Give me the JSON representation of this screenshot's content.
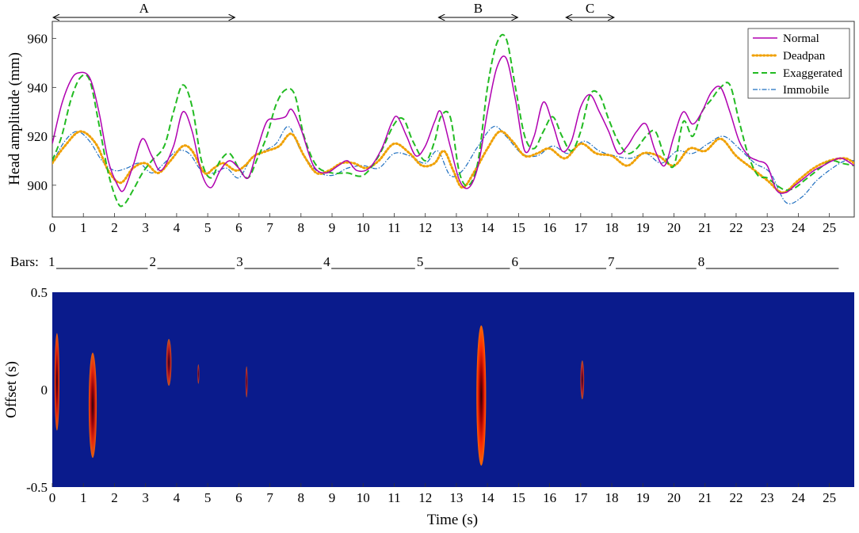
{
  "chart_data": [
    {
      "type": "line",
      "xlabel": "",
      "ylabel": "Head amplitude (mm)",
      "xlim": [
        0,
        25.8
      ],
      "ylim": [
        887,
        967
      ],
      "xticks": [
        "0",
        "1",
        "2",
        "3",
        "4",
        "5",
        "6",
        "7",
        "8",
        "9",
        "10",
        "11",
        "12",
        "13",
        "14",
        "15",
        "16",
        "17",
        "18",
        "19",
        "20",
        "21",
        "22",
        "23",
        "24",
        "25"
      ],
      "yticks": [
        "900",
        "920",
        "940",
        "960"
      ],
      "ytick_values": [
        900,
        920,
        940,
        960
      ],
      "grid": false,
      "legend_position": "top-right",
      "colors": {
        "Normal": "#b000b0",
        "Deadpan": "#f0a000",
        "Exaggerated": "#22bb22",
        "Immobile": "#1f6fc0"
      },
      "annotations": [
        {
          "label": "A",
          "x_start": 0,
          "x_end": 5.9
        },
        {
          "label": "B",
          "x_start": 12.4,
          "x_end": 15.0
        },
        {
          "label": "C",
          "x_start": 16.5,
          "x_end": 18.1
        }
      ],
      "series": [
        {
          "name": "Normal",
          "x": [
            0,
            0.3,
            0.6,
            0.85,
            1.2,
            1.5,
            1.8,
            2.1,
            2.3,
            2.6,
            2.9,
            3.2,
            3.5,
            3.9,
            4.2,
            4.5,
            4.8,
            5.1,
            5.4,
            5.7,
            6.0,
            6.3,
            6.6,
            6.9,
            7.2,
            7.5,
            7.7,
            8.0,
            8.4,
            8.8,
            9.2,
            9.5,
            9.8,
            10.2,
            10.6,
            10.9,
            11.1,
            11.4,
            11.7,
            12.0,
            12.3,
            12.5,
            12.8,
            13.1,
            13.4,
            13.7,
            14.0,
            14.3,
            14.6,
            14.9,
            15.2,
            15.5,
            15.8,
            16.1,
            16.4,
            16.7,
            17.0,
            17.3,
            17.6,
            17.9,
            18.2,
            18.5,
            18.8,
            19.1,
            19.4,
            19.7,
            20.0,
            20.3,
            20.6,
            20.9,
            21.2,
            21.5,
            21.8,
            22.1,
            22.4,
            22.7,
            23.0,
            23.3,
            23.6,
            23.9,
            24.2,
            24.5,
            24.8,
            25.1,
            25.4,
            25.8
          ],
          "values": [
            917,
            933,
            943,
            946,
            944,
            930,
            910,
            900,
            898,
            908,
            919,
            912,
            906,
            916,
            930,
            922,
            905,
            899,
            906,
            910,
            907,
            903,
            915,
            926,
            927,
            928,
            931,
            923,
            908,
            905,
            908,
            910,
            906,
            907,
            915,
            925,
            928,
            920,
            912,
            916,
            926,
            930,
            916,
            902,
            899,
            908,
            930,
            948,
            952,
            935,
            914,
            920,
            934,
            925,
            914,
            918,
            932,
            937,
            930,
            922,
            913,
            916,
            922,
            925,
            914,
            908,
            920,
            930,
            925,
            930,
            938,
            940,
            930,
            918,
            912,
            910,
            908,
            898,
            897,
            900,
            903,
            906,
            908,
            910,
            911,
            908
          ]
        },
        {
          "name": "Deadpan",
          "x": [
            0,
            0.4,
            0.9,
            1.4,
            1.8,
            2.2,
            2.6,
            3.0,
            3.4,
            3.8,
            4.2,
            4.5,
            4.9,
            5.2,
            5.5,
            5.9,
            6.2,
            6.5,
            6.9,
            7.3,
            7.7,
            8.1,
            8.5,
            8.9,
            9.3,
            9.7,
            10.1,
            10.5,
            11.0,
            11.5,
            11.9,
            12.3,
            12.6,
            12.9,
            13.2,
            13.6,
            14.0,
            14.4,
            14.8,
            15.2,
            15.6,
            16.0,
            16.5,
            17.0,
            17.5,
            18.0,
            18.5,
            19.0,
            19.5,
            20.0,
            20.5,
            21.0,
            21.5,
            22.0,
            22.5,
            23.0,
            23.5,
            24.0,
            24.5,
            25.0,
            25.5,
            25.8
          ],
          "values": [
            909,
            916,
            922,
            917,
            906,
            901,
            907,
            909,
            905,
            910,
            916,
            914,
            905,
            907,
            909,
            906,
            908,
            912,
            914,
            916,
            921,
            912,
            905,
            906,
            909,
            909,
            907,
            910,
            917,
            913,
            908,
            909,
            914,
            906,
            899,
            906,
            915,
            922,
            918,
            912,
            913,
            915,
            911,
            917,
            913,
            912,
            908,
            913,
            912,
            908,
            915,
            914,
            919,
            912,
            907,
            902,
            897,
            902,
            907,
            910,
            911,
            909
          ]
        },
        {
          "name": "Exaggerated",
          "x": [
            0,
            0.3,
            0.6,
            0.9,
            1.2,
            1.5,
            1.8,
            2.1,
            2.3,
            2.6,
            2.9,
            3.2,
            3.6,
            3.9,
            4.2,
            4.5,
            4.8,
            5.1,
            5.4,
            5.7,
            6.0,
            6.3,
            6.6,
            6.9,
            7.2,
            7.5,
            7.8,
            8.1,
            8.5,
            9.0,
            9.5,
            10.0,
            10.5,
            11.0,
            11.3,
            11.6,
            12.0,
            12.3,
            12.5,
            12.8,
            13.1,
            13.4,
            13.7,
            14.0,
            14.3,
            14.6,
            14.9,
            15.2,
            15.5,
            15.8,
            16.1,
            16.4,
            16.7,
            17.0,
            17.3,
            17.6,
            17.9,
            18.2,
            18.5,
            18.8,
            19.1,
            19.4,
            19.7,
            20.0,
            20.3,
            20.6,
            20.9,
            21.2,
            21.5,
            21.8,
            22.1,
            22.4,
            22.7,
            23.0,
            23.3,
            23.6,
            23.9,
            24.2,
            24.5,
            24.8,
            25.1,
            25.4,
            25.8
          ],
          "values": [
            910,
            920,
            935,
            944,
            943,
            925,
            905,
            893,
            892,
            898,
            905,
            910,
            916,
            930,
            941,
            932,
            910,
            903,
            910,
            913,
            907,
            903,
            911,
            920,
            933,
            939,
            937,
            920,
            908,
            905,
            905,
            904,
            912,
            925,
            927,
            918,
            910,
            918,
            928,
            928,
            905,
            900,
            910,
            940,
            958,
            960,
            940,
            920,
            915,
            922,
            928,
            920,
            914,
            922,
            937,
            937,
            927,
            918,
            913,
            915,
            920,
            922,
            912,
            908,
            926,
            920,
            930,
            935,
            940,
            941,
            926,
            912,
            904,
            903,
            900,
            898,
            899,
            902,
            905,
            908,
            910,
            909,
            908
          ]
        },
        {
          "name": "Immobile",
          "x": [
            0,
            0.4,
            0.8,
            1.2,
            1.6,
            2.0,
            2.4,
            2.8,
            3.2,
            3.6,
            4.0,
            4.4,
            4.8,
            5.2,
            5.6,
            6.0,
            6.4,
            6.8,
            7.2,
            7.6,
            8.0,
            8.5,
            9.0,
            9.5,
            10.0,
            10.5,
            11.0,
            11.5,
            12.0,
            12.4,
            12.8,
            13.2,
            13.7,
            14.2,
            14.6,
            15.1,
            15.6,
            16.1,
            16.6,
            17.1,
            17.6,
            18.1,
            18.6,
            19.1,
            19.6,
            20.1,
            20.6,
            21.1,
            21.6,
            22.1,
            22.6,
            23.1,
            23.6,
            24.1,
            24.6,
            25.1,
            25.5,
            25.8
          ],
          "values": [
            909,
            918,
            922,
            918,
            910,
            906,
            907,
            909,
            905,
            909,
            914,
            913,
            906,
            905,
            907,
            903,
            911,
            914,
            917,
            924,
            914,
            906,
            904,
            907,
            908,
            907,
            913,
            912,
            909,
            914,
            904,
            906,
            916,
            924,
            920,
            913,
            912,
            916,
            913,
            918,
            914,
            912,
            911,
            913,
            909,
            914,
            913,
            917,
            920,
            915,
            909,
            905,
            893,
            895,
            902,
            907,
            910,
            910
          ]
        }
      ]
    },
    {
      "type": "heatmap",
      "xlabel": "Time (s)",
      "ylabel": "Offset (s)",
      "xlim": [
        0,
        25.8
      ],
      "ylim": [
        -0.5,
        0.5
      ],
      "xticks": [
        "0",
        "1",
        "2",
        "3",
        "4",
        "5",
        "6",
        "7",
        "8",
        "9",
        "10",
        "11",
        "12",
        "13",
        "14",
        "15",
        "16",
        "17",
        "18",
        "19",
        "20",
        "21",
        "22",
        "23",
        "24",
        "25"
      ],
      "yticks": [
        "-0.5",
        "0",
        "0.5"
      ],
      "ytick_values": [
        -0.5,
        0,
        0.5
      ],
      "background_color": "#0a1b8c",
      "blobs": [
        {
          "x": 0.15,
          "y": 0.04,
          "rx": 0.16,
          "ry": 0.25,
          "intensity": 0.75
        },
        {
          "x": 1.3,
          "y": -0.08,
          "rx": 0.26,
          "ry": 0.27,
          "intensity": 0.75
        },
        {
          "x": 3.75,
          "y": 0.14,
          "rx": 0.17,
          "ry": 0.12,
          "intensity": 0.4
        },
        {
          "x": 4.7,
          "y": 0.08,
          "rx": 0.06,
          "ry": 0.05,
          "intensity": 0.25
        },
        {
          "x": 6.25,
          "y": 0.04,
          "rx": 0.07,
          "ry": 0.08,
          "intensity": 0.25
        },
        {
          "x": 13.8,
          "y": -0.03,
          "rx": 0.31,
          "ry": 0.36,
          "intensity": 0.95
        },
        {
          "x": 17.05,
          "y": 0.05,
          "rx": 0.12,
          "ry": 0.1,
          "intensity": 0.3
        }
      ]
    }
  ],
  "bars": {
    "prefix": "Bars:",
    "markers": [
      {
        "label": "1",
        "x": 0.0
      },
      {
        "label": "2",
        "x": 3.25
      },
      {
        "label": "3",
        "x": 6.05
      },
      {
        "label": "4",
        "x": 8.85
      },
      {
        "label": "5",
        "x": 11.85
      },
      {
        "label": "6",
        "x": 14.9
      },
      {
        "label": "7",
        "x": 18.0
      },
      {
        "label": "8",
        "x": 20.9
      }
    ],
    "end_x": 25.3
  }
}
